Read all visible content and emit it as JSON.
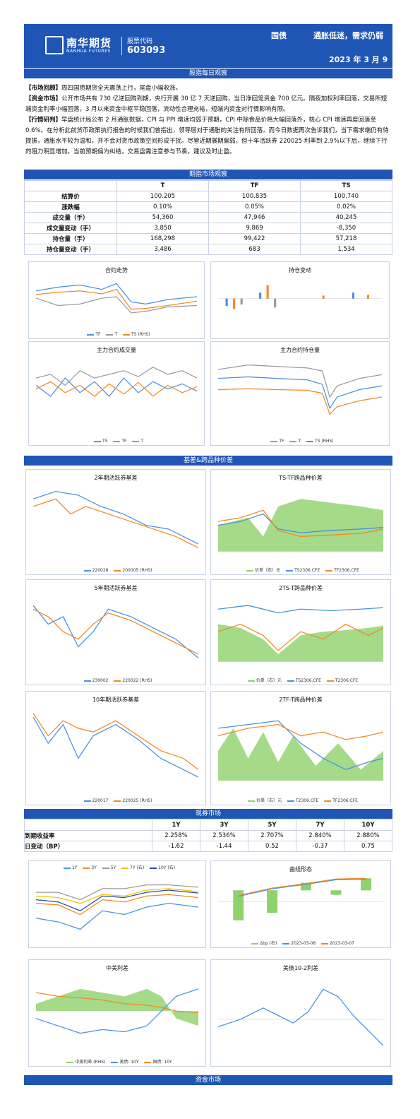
{
  "header": {
    "company_cn": "南华期货",
    "company_en": "NANHUA FUTURES",
    "stock_code_label": "股票代码",
    "stock_code": "603093",
    "category": "国债",
    "title": "通胀低迷，需求仍弱",
    "date": "2023 年 3 月 9"
  },
  "sections": {
    "daily_view": "股指每日观察",
    "market_view": "期指市场观察",
    "basis": "基差&跨品种价差",
    "spot": "现券市场",
    "funds": "资金市场"
  },
  "commentary": {
    "review_label": "【市场回顾】",
    "review_text": "周四国债期货全天震荡上行，尾盘小幅收涨。",
    "funds_label": "【资金市场】",
    "funds_text": "公开市场共有 730 亿逆回购到期，央行开展 30 亿 7 天逆回购，当日净回笼资金 700 亿元。隔夜加权利率回落，交易所短端资金利率小幅回落，3 月以来资金中枢平稳回落，流动性合理充裕，短端内资金对行情影响有限。",
    "research_label": "【行情研判】",
    "research_text": "早盘统计局公布 2 月通胀数据，CPI 与 PPI 增速均弱于预期，CPI 中除食品价格大幅回落外，核心 CPI 增速再度回落至 0.6%。在分析此前货币政策执行报告的时候我们曾指出，领导层对于通胀的关注有所回落。而今日数据再次告诉我们，当下需求端仍有待提振，通胀水平较为温和，并不会对货币政策空间形成干扰。尽管近期展期偏弱，但十年活跃券 220025 利率到 2.9%以下后，继续下行的阻力明显增加，当前预期偏为纠结，交易盘需注意参与节奏，建议及时止盈。"
  },
  "futures_table": {
    "columns": [
      "T",
      "TF",
      "TS"
    ],
    "rows": [
      {
        "label": "结算价",
        "values": [
          "100.205",
          "100.835",
          "100.740"
        ]
      },
      {
        "label": "涨跌幅",
        "values": [
          "0.10%",
          "0.05%",
          "0.02%"
        ]
      },
      {
        "label": "成交量（手）",
        "values": [
          "54,360",
          "47,946",
          "40,245"
        ]
      },
      {
        "label": "成交量变动（手）",
        "values": [
          "3,850",
          "9,869",
          "-8,350"
        ]
      },
      {
        "label": "持仓量（手）",
        "values": [
          "168,298",
          "99,422",
          "57,218"
        ]
      },
      {
        "label": "持仓量变动（手）",
        "values": [
          "3,486",
          "683",
          "1,534"
        ]
      }
    ]
  },
  "charts": {
    "c1": {
      "title": "合约走势",
      "legend": [
        "TF",
        "T",
        "TS (RHS)"
      ]
    },
    "c2": {
      "title": "持仓变动"
    },
    "c3": {
      "title": "主力合约成交量",
      "legend": [
        "TS",
        "TF",
        "T"
      ]
    },
    "c4": {
      "title": "主力合约持仓量",
      "legend": [
        "TF",
        "T",
        "TS (RHS)"
      ]
    },
    "c5": {
      "title": "2年期活跃券基差",
      "legend": [
        "220028",
        "200005 (RHS)"
      ]
    },
    "c6": {
      "title": "TS-TF跨品种价差",
      "legend": [
        "价差（右）元",
        "TS2306.CFE",
        "TF2306.CFE"
      ]
    },
    "c7": {
      "title": "5年期活跃券基差",
      "legend": [
        "230002",
        "220022 (RHS)"
      ]
    },
    "c8": {
      "title": "2TS-T跨品种价差",
      "legend": [
        "价差（右）元",
        "TS2306.CFE",
        "T2306.CFE"
      ]
    },
    "c9": {
      "title": "10年期活跃券基差",
      "legend": [
        "220017",
        "220025 (RHS)"
      ]
    },
    "c10": {
      "title": "2TF-T跨品种价差",
      "legend": [
        "价差（右）元",
        "T2306.CFE",
        "TF2306.CFE"
      ]
    },
    "c11": {
      "title": "",
      "legend": [
        "1Y",
        "3Y",
        "5Y",
        "7Y (右)",
        "10Y (右)"
      ]
    },
    "c12": {
      "title": "曲线形态",
      "legend": [
        "Δbp (右)",
        "2023-03-08",
        "2023-03-07"
      ]
    },
    "c13": {
      "title": "中美利差",
      "legend": [
        "中美利差 (RHS)",
        "美债: 10Y",
        "国债: 10Y"
      ]
    },
    "c14": {
      "title": "美债10-2利差"
    }
  },
  "yield_table": {
    "columns": [
      "1Y",
      "3Y",
      "5Y",
      "7Y",
      "10Y"
    ],
    "rows": [
      {
        "label": "到期收益率",
        "values": [
          "2.258%",
          "2.536%",
          "2.707%",
          "2.840%",
          "2.880%"
        ]
      },
      {
        "label": "日变动（BP）",
        "values": [
          "-1.62",
          "-1.44",
          "0.52",
          "-0.37",
          "0.75"
        ]
      }
    ]
  },
  "colors": {
    "brand": "#1f56b5",
    "blue": "#4a90e2",
    "orange": "#f08a24",
    "gray": "#9b9b9b",
    "green": "#8fd16b"
  }
}
